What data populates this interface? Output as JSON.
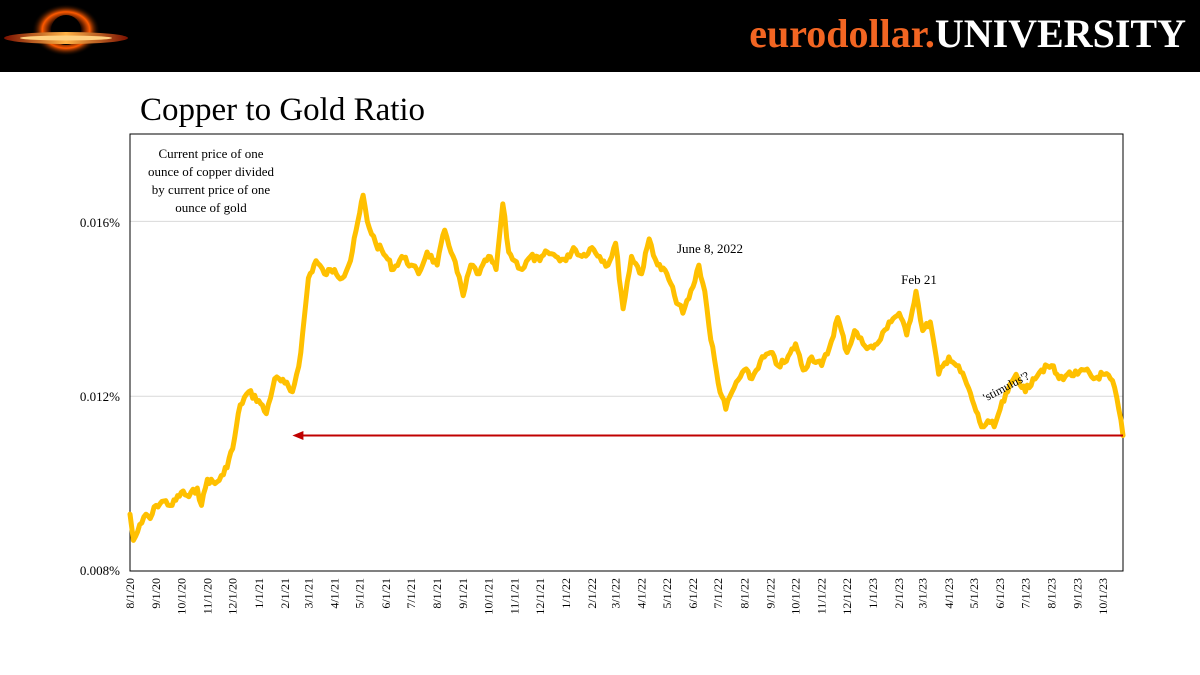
{
  "header": {
    "brand_lower": "eurodollar.",
    "brand_upper": "UNIVERSITY"
  },
  "colors": {
    "header_bg": "#000000",
    "brand_orange": "#f26522",
    "series": "#ffc000",
    "arrow": "#c00000",
    "grid": "#d9d9d9"
  },
  "chart_data": {
    "type": "line",
    "title": "Copper to Gold Ratio",
    "y_ticks": [
      "0.016%",
      "0.012%",
      "0.008%"
    ],
    "y_tick_values": [
      0.016,
      0.012,
      0.008
    ],
    "ylim": [
      0.008,
      0.018
    ],
    "x_ticks": [
      "8/1/20",
      "9/1/20",
      "10/1/20",
      "11/1/20",
      "12/1/20",
      "1/1/21",
      "2/1/21",
      "3/1/21",
      "4/1/21",
      "5/1/21",
      "6/1/21",
      "7/1/21",
      "8/1/21",
      "9/1/21",
      "10/1/21",
      "11/1/21",
      "12/1/21",
      "1/1/22",
      "2/1/22",
      "3/1/22",
      "4/1/22",
      "5/1/22",
      "6/1/22",
      "7/1/22",
      "8/1/22",
      "9/1/22",
      "10/1/22",
      "11/1/22",
      "12/1/22",
      "1/1/23",
      "2/1/23",
      "3/1/23",
      "4/1/23",
      "5/1/23",
      "6/1/23",
      "7/1/23",
      "8/1/23",
      "9/1/23",
      "10/1/23"
    ],
    "xlim": [
      "2020-08-01",
      "2023-10-25"
    ],
    "grid": "horizontal",
    "annotations": {
      "description": "Current price of one ounce of copper divided by current price of one ounce of gold",
      "description_lines": [
        "Current price of one",
        "ounce of copper divided",
        "by current price of one",
        "ounce of gold"
      ],
      "june": "June 8, 2022",
      "feb": "Feb 21",
      "stimulus": "'stimulus'?"
    },
    "reference_arrow": {
      "from": "2023-10-25",
      "to": "2021-02-10",
      "y": 0.0111
    },
    "series": [
      {
        "x": [
          "2020-08-01",
          "2020-08-05",
          "2020-08-10",
          "2020-08-15",
          "2020-08-20",
          "2020-08-25",
          "2020-09-01",
          "2020-09-10",
          "2020-09-20",
          "2020-10-01",
          "2020-10-10",
          "2020-10-20",
          "2020-10-25",
          "2020-11-01",
          "2020-11-10",
          "2020-11-20",
          "2020-12-01",
          "2020-12-10",
          "2020-12-20",
          "2021-01-01",
          "2021-01-10",
          "2021-01-20",
          "2021-02-01",
          "2021-02-10",
          "2021-02-15",
          "2021-02-20",
          "2021-03-01",
          "2021-03-10",
          "2021-03-20",
          "2021-04-01",
          "2021-04-10",
          "2021-04-20",
          "2021-05-01",
          "2021-05-05",
          "2021-05-10",
          "2021-05-20",
          "2021-06-01",
          "2021-06-10",
          "2021-06-20",
          "2021-07-01",
          "2021-07-10",
          "2021-07-20",
          "2021-08-01",
          "2021-08-10",
          "2021-08-20",
          "2021-09-01",
          "2021-09-10",
          "2021-09-20",
          "2021-10-01",
          "2021-10-10",
          "2021-10-18",
          "2021-10-25",
          "2021-11-01",
          "2021-11-10",
          "2021-11-20",
          "2021-12-01",
          "2021-12-10",
          "2021-12-20",
          "2022-01-01",
          "2022-01-10",
          "2022-01-20",
          "2022-02-01",
          "2022-02-10",
          "2022-02-20",
          "2022-03-01",
          "2022-03-10",
          "2022-03-20",
          "2022-04-01",
          "2022-04-10",
          "2022-04-20",
          "2022-05-01",
          "2022-05-10",
          "2022-05-20",
          "2022-06-01",
          "2022-06-08",
          "2022-06-15",
          "2022-06-20",
          "2022-07-01",
          "2022-07-10",
          "2022-07-15",
          "2022-07-20",
          "2022-08-01",
          "2022-08-10",
          "2022-08-20",
          "2022-09-01",
          "2022-09-10",
          "2022-09-20",
          "2022-10-01",
          "2022-10-10",
          "2022-10-20",
          "2022-11-01",
          "2022-11-10",
          "2022-11-20",
          "2022-12-01",
          "2022-12-10",
          "2022-12-20",
          "2023-01-01",
          "2023-01-10",
          "2023-01-20",
          "2023-02-01",
          "2023-02-10",
          "2023-02-21",
          "2023-03-01",
          "2023-03-10",
          "2023-03-20",
          "2023-04-01",
          "2023-04-10",
          "2023-04-20",
          "2023-05-01",
          "2023-05-10",
          "2023-05-20",
          "2023-05-25",
          "2023-06-01",
          "2023-06-10",
          "2023-06-20",
          "2023-07-01",
          "2023-07-10",
          "2023-07-20",
          "2023-08-01",
          "2023-08-10",
          "2023-08-20",
          "2023-09-01",
          "2023-09-10",
          "2023-09-20",
          "2023-10-01",
          "2023-10-10",
          "2023-10-15",
          "2023-10-20",
          "2023-10-25"
        ],
        "values": [
          0.0093,
          0.0087,
          0.0089,
          0.0091,
          0.0093,
          0.0092,
          0.0095,
          0.0096,
          0.0095,
          0.0098,
          0.0097,
          0.0099,
          0.0095,
          0.0101,
          0.01,
          0.0102,
          0.0108,
          0.0118,
          0.0121,
          0.0119,
          0.0116,
          0.0124,
          0.0123,
          0.0121,
          0.0125,
          0.013,
          0.0147,
          0.0151,
          0.0148,
          0.0149,
          0.0147,
          0.0151,
          0.0162,
          0.0166,
          0.016,
          0.0155,
          0.0152,
          0.0149,
          0.0152,
          0.015,
          0.0148,
          0.0153,
          0.015,
          0.0158,
          0.0152,
          0.0143,
          0.015,
          0.0148,
          0.0152,
          0.0149,
          0.0164,
          0.0153,
          0.0151,
          0.0149,
          0.0152,
          0.0151,
          0.0153,
          0.0152,
          0.0151,
          0.0154,
          0.0152,
          0.0154,
          0.0152,
          0.015,
          0.0155,
          0.014,
          0.0152,
          0.0148,
          0.0156,
          0.015,
          0.0148,
          0.0143,
          0.0139,
          0.0145,
          0.015,
          0.0144,
          0.0136,
          0.0123,
          0.0117,
          0.012,
          0.0122,
          0.0126,
          0.0124,
          0.0128,
          0.013,
          0.0127,
          0.0128,
          0.0132,
          0.0126,
          0.0129,
          0.0127,
          0.0131,
          0.0138,
          0.013,
          0.0135,
          0.0132,
          0.0131,
          0.0133,
          0.0137,
          0.0139,
          0.0134,
          0.0144,
          0.0135,
          0.0137,
          0.0125,
          0.0129,
          0.0127,
          0.0124,
          0.0118,
          0.0113,
          0.0114,
          0.0113,
          0.0117,
          0.0121,
          0.0125,
          0.0121,
          0.0124,
          0.0126,
          0.0127,
          0.0124,
          0.0125,
          0.0125,
          0.0126,
          0.0124,
          0.0125,
          0.0124,
          0.0122,
          0.0117,
          0.0111
        ]
      }
    ]
  }
}
